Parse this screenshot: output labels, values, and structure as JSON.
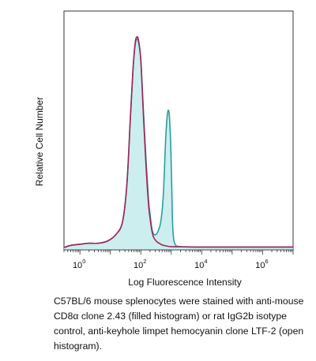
{
  "chart_data": {
    "type": "area",
    "xlabel": "Log Fluorescence Intensity",
    "ylabel": "Relative Cell Number",
    "x_scale": "log",
    "xlim": [
      0.3,
      10000000
    ],
    "ylim": [
      0,
      1
    ],
    "grid": false,
    "legend": "none",
    "x_ticks": [
      {
        "base": "10",
        "exp": "0",
        "value": 1
      },
      {
        "base": "10",
        "exp": "2",
        "value": 100
      },
      {
        "base": "10",
        "exp": "4",
        "value": 10000
      },
      {
        "base": "10",
        "exp": "6",
        "value": 1000000
      }
    ],
    "series": [
      {
        "style": "filled",
        "fill_color": "#cdeeee",
        "line_color": "#2a9ea0",
        "x": [
          0.3,
          0.5,
          1,
          2,
          4,
          8,
          15,
          25,
          35,
          45,
          55,
          65,
          75,
          85,
          100,
          120,
          150,
          180,
          200,
          230,
          260,
          300,
          350,
          450,
          550,
          650,
          750,
          850,
          950,
          1000,
          1050,
          1100,
          1200,
          1400,
          1800,
          3000,
          10000,
          100000,
          1000000,
          10000000
        ],
        "y": [
          0.0,
          0.01,
          0.015,
          0.02,
          0.02,
          0.03,
          0.06,
          0.12,
          0.3,
          0.6,
          0.83,
          0.95,
          0.98,
          0.96,
          0.88,
          0.66,
          0.4,
          0.22,
          0.16,
          0.09,
          0.065,
          0.06,
          0.07,
          0.12,
          0.25,
          0.5,
          0.63,
          0.63,
          0.5,
          0.38,
          0.25,
          0.12,
          0.04,
          0.01,
          0.005,
          0.003,
          0.002,
          0.002,
          0.002,
          0.002
        ]
      },
      {
        "style": "open",
        "line_color": "#a0245a",
        "x": [
          0.3,
          0.5,
          1,
          2,
          4,
          8,
          15,
          25,
          35,
          45,
          55,
          65,
          75,
          85,
          100,
          120,
          150,
          180,
          200,
          230,
          260,
          300,
          350,
          400,
          500,
          700,
          1000,
          3000,
          10000,
          100000,
          1000000,
          10000000
        ],
        "y": [
          0.0,
          0.01,
          0.015,
          0.02,
          0.02,
          0.03,
          0.06,
          0.12,
          0.3,
          0.6,
          0.83,
          0.96,
          0.99,
          0.97,
          0.88,
          0.64,
          0.37,
          0.2,
          0.14,
          0.08,
          0.05,
          0.035,
          0.025,
          0.02,
          0.012,
          0.007,
          0.004,
          0.003,
          0.002,
          0.002,
          0.002,
          0.002
        ]
      }
    ]
  },
  "caption": "C57BL/6 mouse splenocytes were stained with anti-mouse CD8α clone 2.43 (filled histogram) or rat IgG2b isotype control, anti-keyhole limpet hemocyanin clone LTF-2 (open histogram)."
}
